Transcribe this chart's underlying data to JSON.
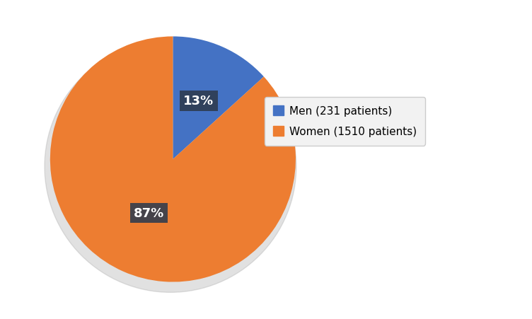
{
  "labels": [
    "Men (231 patients)",
    "Women (1510 patients)"
  ],
  "values": [
    231,
    1510
  ],
  "percentages": [
    "13%",
    "87%"
  ],
  "colors": [
    "#4472C4",
    "#ED7D31"
  ],
  "background_color": "#FFFFFF",
  "text_color": "#FFFFFF",
  "label_bg_color": "#2E3B4E",
  "figsize": [
    7.52,
    4.52
  ],
  "dpi": 100,
  "startangle": 90,
  "legend_fontsize": 11,
  "pct_fontsize": 13
}
